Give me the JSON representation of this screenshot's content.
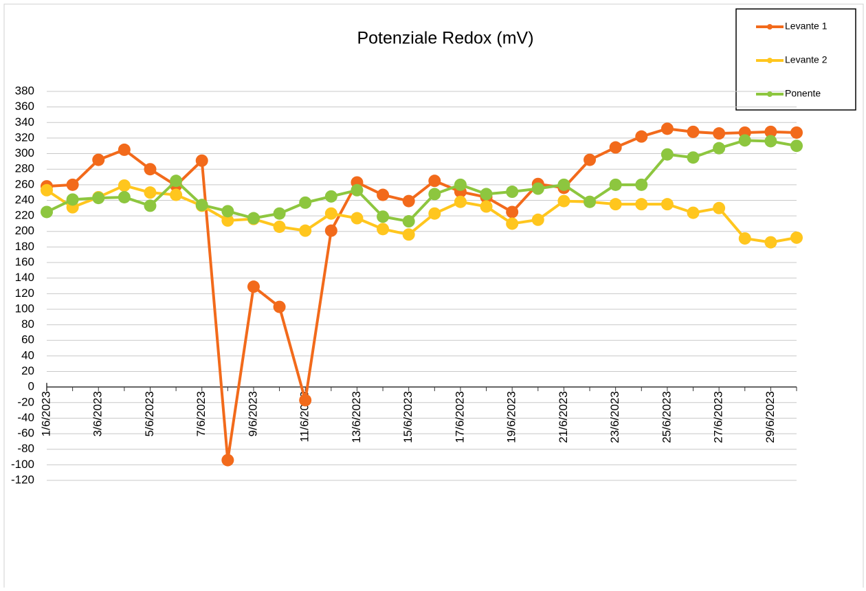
{
  "chart_data": {
    "type": "line",
    "title": "Potenziale Redox  (mV)",
    "categories": [
      "1/6/2023",
      null,
      "3/6/2023",
      null,
      "5/6/2023",
      null,
      "7/6/2023",
      null,
      "9/6/2023",
      null,
      "11/6/2023",
      null,
      "13/6/2023",
      null,
      "15/6/2023",
      null,
      "17/6/2023",
      null,
      "19/6/2023",
      null,
      "21/6/2023",
      null,
      "23/6/2023",
      null,
      "25/6/2023",
      null,
      "27/6/2023",
      null,
      "29/6/2023",
      null
    ],
    "series": [
      {
        "name": "Levante 1",
        "color": "#f26a1b",
        "values": [
          258,
          260,
          292,
          305,
          280,
          259,
          291,
          -94,
          129,
          103,
          -17,
          201,
          263,
          247,
          239,
          265,
          251,
          244,
          225,
          261,
          256,
          292,
          308,
          322,
          332,
          328,
          326,
          327,
          328,
          327
        ]
      },
      {
        "name": "Levante 2",
        "color": "#ffc61e",
        "values": [
          253,
          231,
          244,
          259,
          250,
          247,
          233,
          214,
          216,
          206,
          201,
          223,
          217,
          203,
          196,
          223,
          238,
          232,
          210,
          215,
          239,
          238,
          235,
          235,
          235,
          224,
          230,
          191,
          186,
          192
        ]
      },
      {
        "name": "Ponente",
        "color": "#8dc63f",
        "values": [
          225,
          241,
          243,
          244,
          233,
          265,
          234,
          226,
          217,
          223,
          237,
          245,
          253,
          219,
          213,
          248,
          260,
          248,
          251,
          255,
          260,
          238,
          260,
          260,
          299,
          295,
          307,
          317,
          316,
          310
        ]
      }
    ],
    "ylim": [
      -120,
      380
    ],
    "yticks": [
      380,
      360,
      340,
      320,
      300,
      280,
      260,
      240,
      220,
      200,
      180,
      160,
      140,
      120,
      100,
      80,
      60,
      40,
      20,
      0,
      -20,
      -40,
      -60,
      -80,
      -100,
      -120
    ],
    "grid": true,
    "legend": "top-right"
  }
}
